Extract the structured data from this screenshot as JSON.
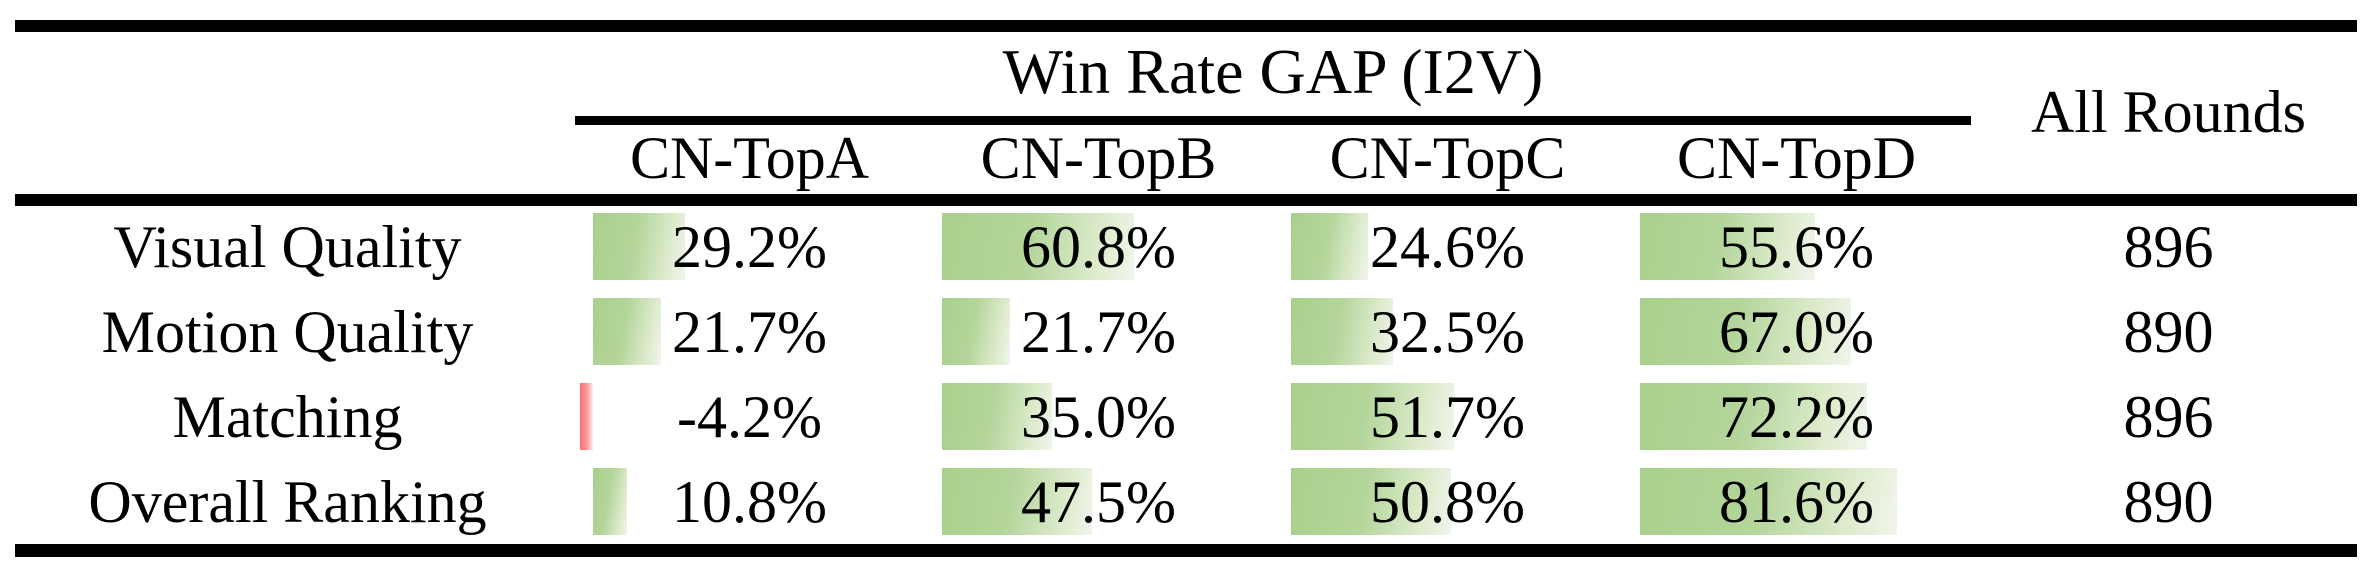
{
  "chart_data": {
    "type": "table",
    "title": "Win Rate GAP (I2V)",
    "all_rounds_label": "All Rounds",
    "columns": [
      "CN-TopA",
      "CN-TopB",
      "CN-TopC",
      "CN-TopD"
    ],
    "rows": [
      {
        "label": "Visual Quality",
        "values": [
          29.2,
          60.8,
          24.6,
          55.6
        ],
        "display": [
          "29.2%",
          "60.8%",
          "24.6%",
          "55.6%"
        ],
        "all_rounds": "896"
      },
      {
        "label": "Motion Quality",
        "values": [
          21.7,
          21.7,
          32.5,
          67.0
        ],
        "display": [
          "21.7%",
          "21.7%",
          "32.5%",
          "67.0%"
        ],
        "all_rounds": "890"
      },
      {
        "label": "Matching",
        "values": [
          -4.2,
          35.0,
          51.7,
          72.2
        ],
        "display": [
          "-4.2%",
          "35.0%",
          "51.7%",
          "72.2%"
        ],
        "all_rounds": "896"
      },
      {
        "label": "Overall Ranking",
        "values": [
          10.8,
          47.5,
          50.8,
          81.6
        ],
        "display": [
          "10.8%",
          "47.5%",
          "50.8%",
          "81.6%"
        ],
        "all_rounds": "890"
      }
    ],
    "bar_axis": {
      "min": 0,
      "max": 100,
      "anchor": "left",
      "negative_direction": "left"
    },
    "colors": {
      "bar_positive": "#a9d08e",
      "bar_positive_fade": "#f1f5ec",
      "bar_negative": "#f86f6f",
      "rule": "#000000",
      "text": "#000000",
      "background": "#ffffff"
    },
    "layout_hints": {
      "grid": "booktabs rules only",
      "bars_behind_text": true
    }
  }
}
